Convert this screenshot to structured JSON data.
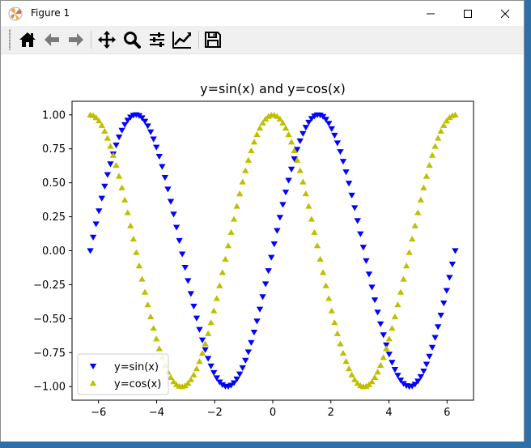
{
  "window": {
    "title": "Figure 1"
  },
  "toolbar": {
    "buttons": [
      {
        "name": "home-icon"
      },
      {
        "name": "back-arrow-icon"
      },
      {
        "name": "forward-arrow-icon"
      },
      {
        "name": "pan-icon"
      },
      {
        "name": "zoom-icon"
      },
      {
        "name": "configure-subplots-icon"
      },
      {
        "name": "edit-axis-icon"
      },
      {
        "name": "save-icon"
      }
    ]
  },
  "colors": {
    "sin": "#0000ff",
    "cos": "#bfbf00"
  },
  "chart_data": {
    "type": "scatter",
    "title": "y=sin(x) and y=cos(x)",
    "xlabel": "",
    "ylabel": "",
    "xlim": [
      -6.912,
      6.912
    ],
    "ylim": [
      -1.1,
      1.1
    ],
    "xticks": [
      -6,
      -4,
      -2,
      0,
      2,
      4,
      6
    ],
    "xtick_labels": [
      "−6",
      "−4",
      "−2",
      "0",
      "2",
      "4",
      "6"
    ],
    "yticks": [
      -1.0,
      -0.75,
      -0.5,
      -0.25,
      0.0,
      0.25,
      0.5,
      0.75,
      1.0
    ],
    "ytick_labels": [
      "−1.00",
      "−0.75",
      "−0.50",
      "−0.25",
      "0.00",
      "0.25",
      "0.50",
      "0.75",
      "1.00"
    ],
    "x_range": [
      -6.283,
      6.283
    ],
    "num_points": 128,
    "legend_position": "lower-left",
    "grid": false,
    "series": [
      {
        "name": "y=sin(x)",
        "function": "sin",
        "marker": "triangle-down",
        "color": "#0000ff"
      },
      {
        "name": "y=cos(x)",
        "function": "cos",
        "marker": "triangle-up",
        "color": "#bfbf00"
      }
    ]
  }
}
